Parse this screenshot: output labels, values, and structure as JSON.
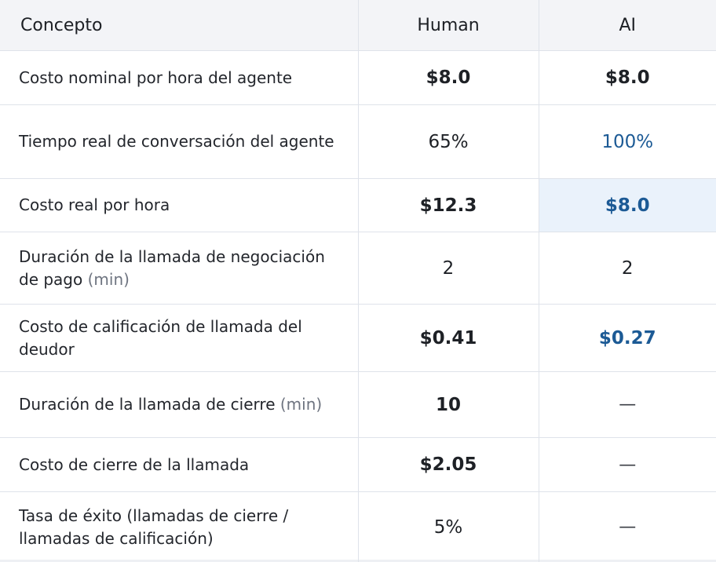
{
  "table": {
    "headers": {
      "concept": "Concepto",
      "human": "Human",
      "ai": "AI"
    },
    "rows": [
      {
        "concept": "Costo nominal por hora del agente",
        "human": "$8.0",
        "ai": "$8.0"
      },
      {
        "concept": "Tiempo real de conversación del agente",
        "human": "65%",
        "ai": "100%"
      },
      {
        "concept": "Costo real por hora",
        "human": "$12.3",
        "ai": "$8.0"
      },
      {
        "concept": "Duración de la llamada de negociación de pago",
        "concept_unit": "(min)",
        "human": "2",
        "ai": "2"
      },
      {
        "concept": "Costo de calificación de llamada del deudor",
        "human": "$0.41",
        "ai": "$0.27"
      },
      {
        "concept": "Duración de la llamada de cierre",
        "concept_unit": "(min)",
        "human": "10",
        "ai": "—"
      },
      {
        "concept": "Costo de cierre de la llamada",
        "human": "$2.05",
        "ai": "—"
      },
      {
        "concept": "Tasa de éxito (llamadas de cierre / llamadas de calificación)",
        "human": "5%",
        "ai": "—"
      }
    ],
    "colors": {
      "accent_blue": "#1c5a95",
      "highlight_bg": "#eaf2fb",
      "header_bg": "#f3f4f7",
      "border": "#dfe3ea"
    }
  }
}
